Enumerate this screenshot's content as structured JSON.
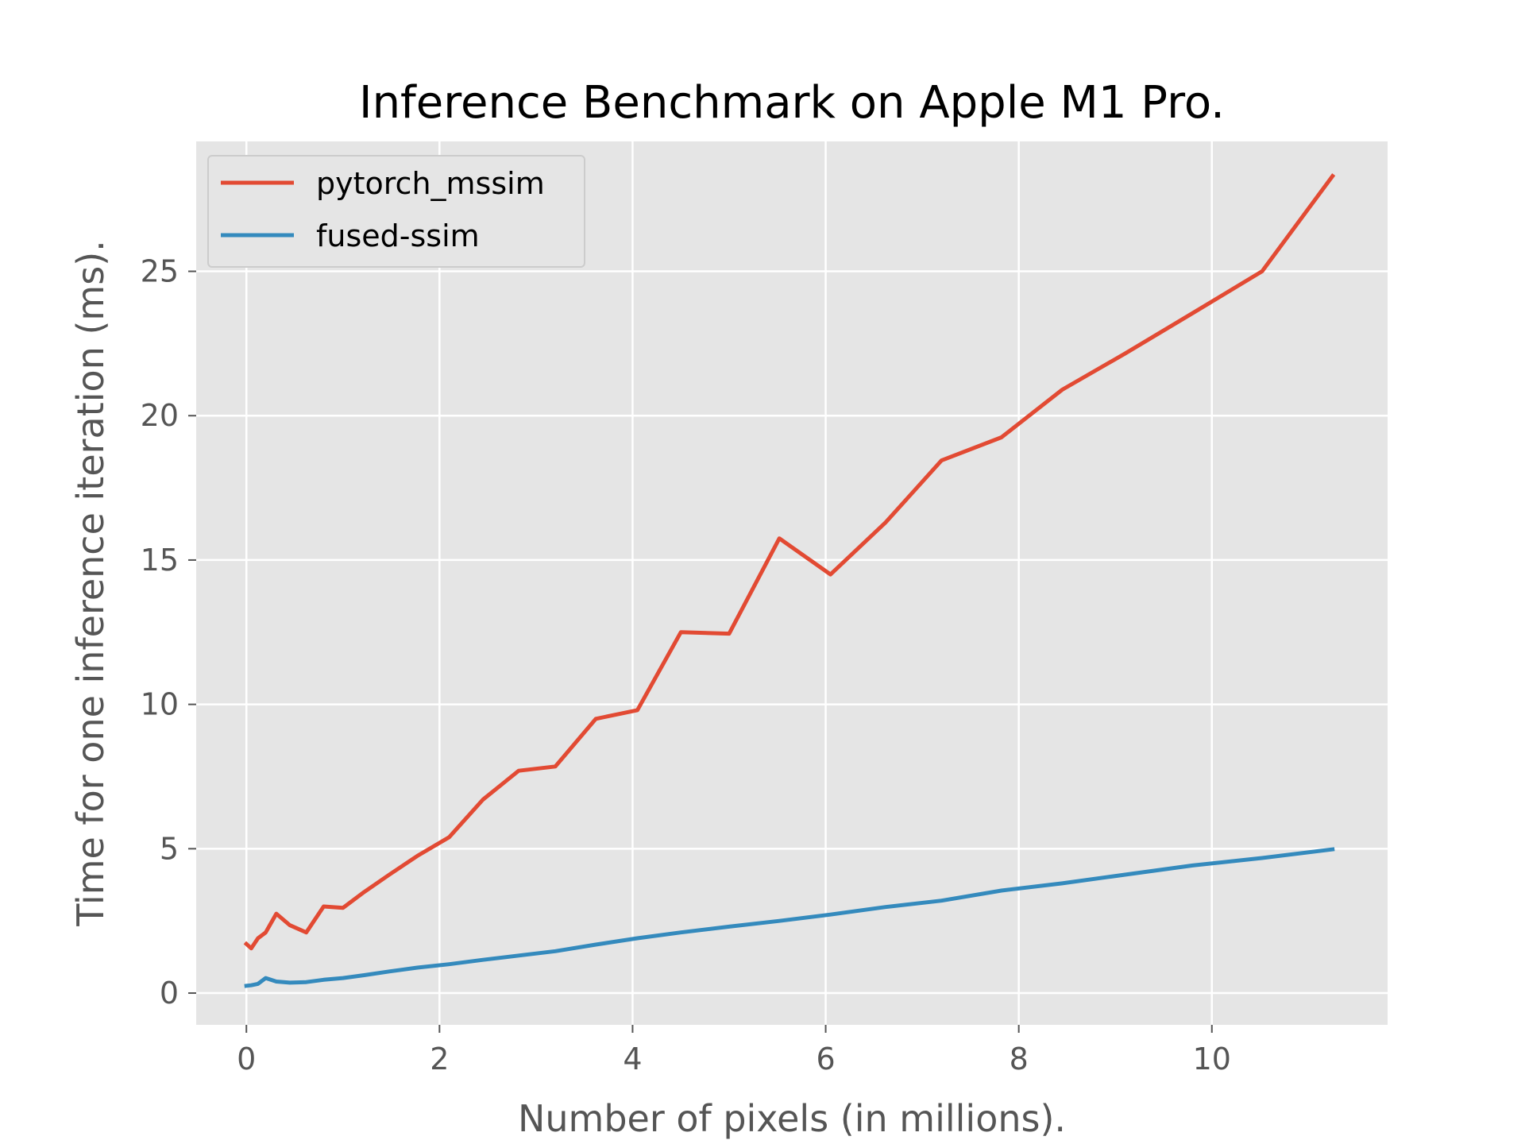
{
  "chart_data": {
    "type": "line",
    "title": "Inference Benchmark on Apple M1 Pro.",
    "xlabel": "Number of pixels (in millions).",
    "ylabel": "Time for one inference iteration (ms).",
    "xlim": [
      -0.52,
      11.82
    ],
    "ylim": [
      -1.1,
      29.5
    ],
    "xticks": [
      0,
      2,
      4,
      6,
      8,
      10
    ],
    "yticks": [
      0,
      5,
      10,
      15,
      20,
      25
    ],
    "grid": true,
    "legend_position": "top-left",
    "series": [
      {
        "name": "pytorch_mssim",
        "color": "#E24A33",
        "x": [
          0,
          0.05,
          0.12,
          0.2,
          0.31,
          0.45,
          0.62,
          0.8,
          1.0,
          1.22,
          1.48,
          1.77,
          2.1,
          2.45,
          2.82,
          3.2,
          3.62,
          4.05,
          4.5,
          5.0,
          5.52,
          6.05,
          6.62,
          7.2,
          7.82,
          8.45,
          9.1,
          9.8,
          10.52,
          11.25
        ],
        "y": [
          1.7,
          1.55,
          1.9,
          2.1,
          2.75,
          2.35,
          2.1,
          3.0,
          2.95,
          3.5,
          4.1,
          4.75,
          5.4,
          6.7,
          7.7,
          7.85,
          9.5,
          9.8,
          12.5,
          12.45,
          15.75,
          14.5,
          16.3,
          18.45,
          19.25,
          20.9,
          22.15,
          23.55,
          25.0,
          28.3
        ]
      },
      {
        "name": "fused-ssim",
        "color": "#348ABD",
        "x": [
          0,
          0.05,
          0.12,
          0.2,
          0.31,
          0.45,
          0.62,
          0.8,
          1.0,
          1.22,
          1.48,
          1.77,
          2.1,
          2.45,
          2.82,
          3.2,
          3.62,
          4.05,
          4.5,
          5.0,
          5.52,
          6.05,
          6.62,
          7.2,
          7.82,
          8.45,
          9.1,
          9.8,
          10.52,
          11.25
        ],
        "y": [
          0.25,
          0.27,
          0.32,
          0.52,
          0.4,
          0.36,
          0.38,
          0.46,
          0.52,
          0.62,
          0.75,
          0.88,
          1.0,
          1.15,
          1.3,
          1.45,
          1.68,
          1.9,
          2.1,
          2.3,
          2.5,
          2.72,
          2.98,
          3.2,
          3.55,
          3.8,
          4.1,
          4.42,
          4.68,
          4.98
        ]
      }
    ]
  },
  "colors": {
    "plot_background": "#E5E5E5",
    "grid": "#FFFFFF",
    "tick_label": "#555555"
  }
}
